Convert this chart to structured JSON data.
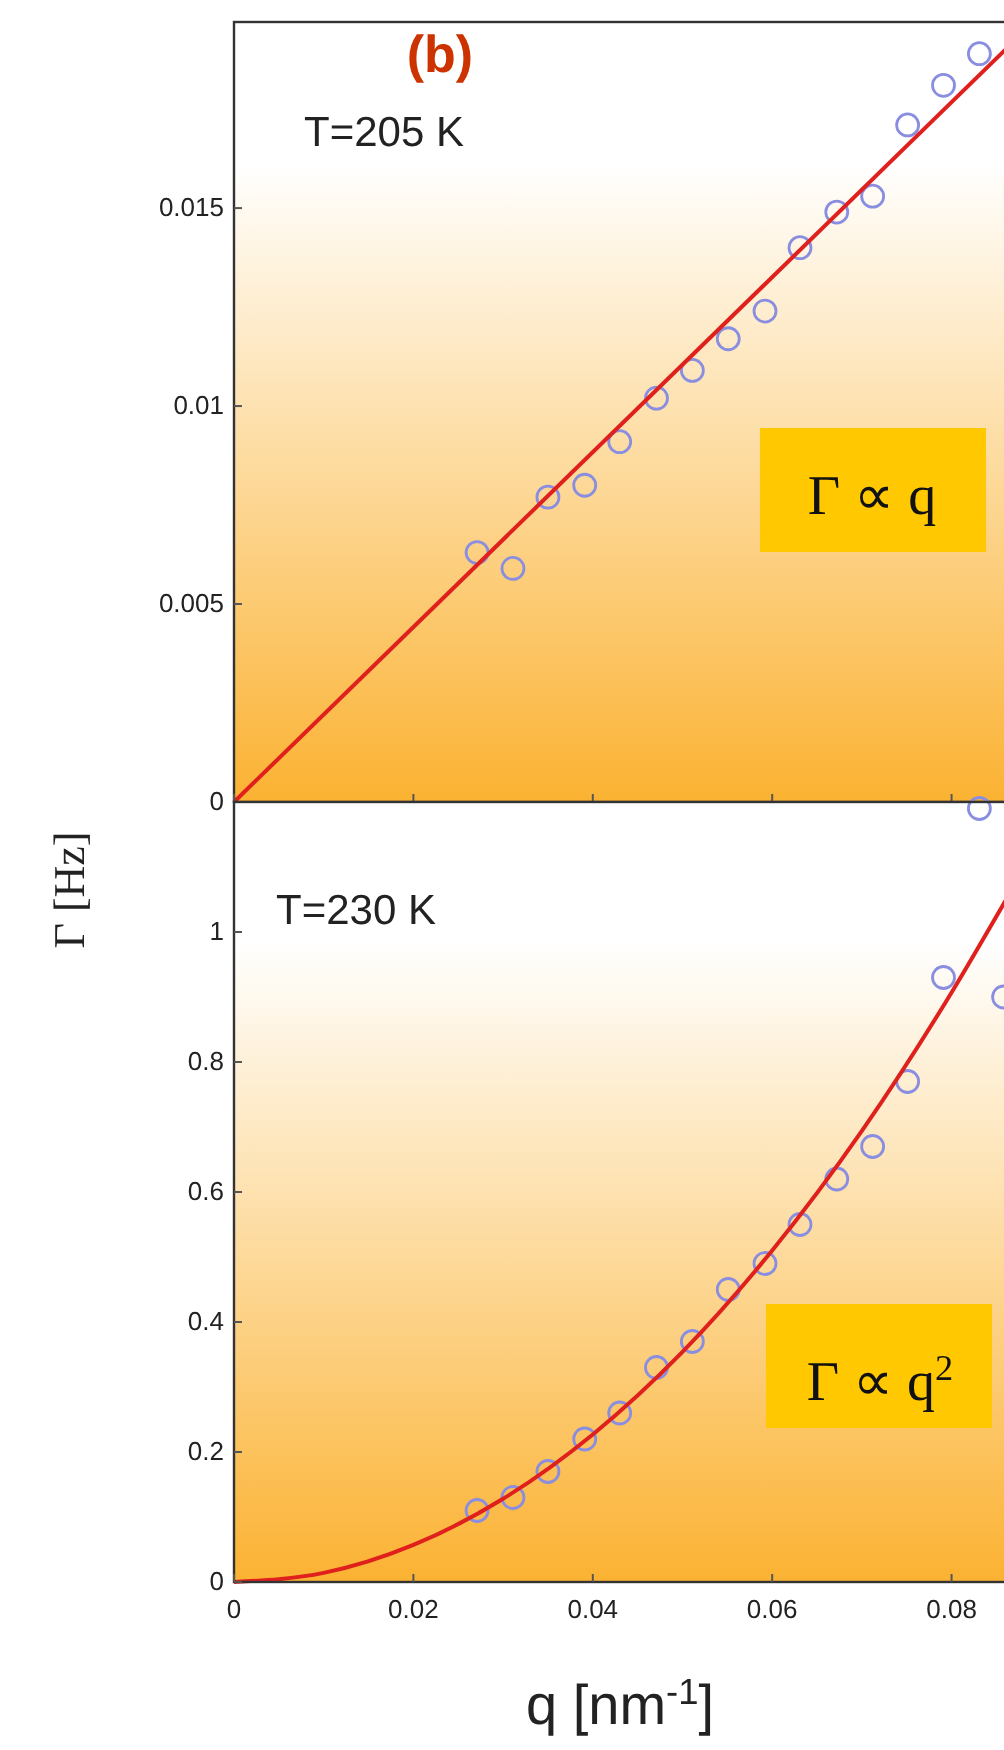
{
  "chart_data": [
    {
      "type": "scatter",
      "ylabel": "Γ [Hz]",
      "annotations": [
        "(b)",
        "T=205 K",
        "Γ ∝ q"
      ],
      "xlim": [
        0,
        0.086
      ],
      "xticks": [
        {
          "value": 0,
          "label": null
        },
        {
          "value": 0.02,
          "label": null
        },
        {
          "value": 0.04,
          "label": null
        },
        {
          "value": 0.06,
          "label": null
        },
        {
          "value": 0.08,
          "label": null
        }
      ],
      "ylim": [
        0,
        0.0197
      ],
      "yticks": [
        0,
        0.005,
        0.01,
        0.015
      ],
      "tick_labels": "y",
      "series": [
        {
          "marker": "circle",
          "color": "#8a8ee0",
          "x": [
            0.0271,
            0.0311,
            0.035,
            0.0391,
            0.043,
            0.0471,
            0.0511,
            0.0551,
            0.0592,
            0.0631,
            0.0672,
            0.0712,
            0.0751,
            0.0791,
            0.0831
          ],
          "values": [
            0.0063,
            0.0059,
            0.0077,
            0.008,
            0.0091,
            0.0102,
            0.0109,
            0.0117,
            0.0124,
            0.014,
            0.0149,
            0.0153,
            0.0171,
            0.0181,
            0.0189
          ]
        },
        {
          "type": "line",
          "color": "#e0201c",
          "x": [
            0,
            0.086
          ],
          "values": [
            0,
            0.019
          ]
        }
      ]
    },
    {
      "type": "scatter",
      "xlabel": "q [nm$^{-1}$]",
      "annotations": [
        "T=230 K",
        "Γ ∝ q$^{2}$"
      ],
      "xlim": [
        0,
        0.086
      ],
      "xticks": [
        0,
        0.02,
        0.04,
        0.06,
        0.08
      ],
      "ylim": [
        0,
        1.2
      ],
      "yticks": [
        0,
        0.2,
        0.4,
        0.6,
        0.8,
        1
      ],
      "series": [
        {
          "marker": "circle",
          "color": "#8a8ee0",
          "x": [
            0.0271,
            0.0311,
            0.035,
            0.0391,
            0.043,
            0.0471,
            0.0511,
            0.0551,
            0.0592,
            0.0631,
            0.0672,
            0.0712,
            0.0751,
            0.0791,
            0.0831,
            0.0858
          ],
          "values": [
            0.11,
            0.13,
            0.17,
            0.22,
            0.26,
            0.33,
            0.37,
            0.45,
            0.49,
            0.55,
            0.62,
            0.67,
            0.77,
            0.93,
            1.19,
            0.9
          ]
        },
        {
          "type": "line",
          "color": "#e0201c",
          "x": [
            0,
            0.01,
            0.02,
            0.03,
            0.04,
            0.05,
            0.06,
            0.07,
            0.08,
            0.086
          ],
          "values": [
            0,
            0.014,
            0.057,
            0.128,
            0.227,
            0.354,
            0.51,
            0.694,
            0.907,
            1.048
          ]
        }
      ]
    }
  ]
}
